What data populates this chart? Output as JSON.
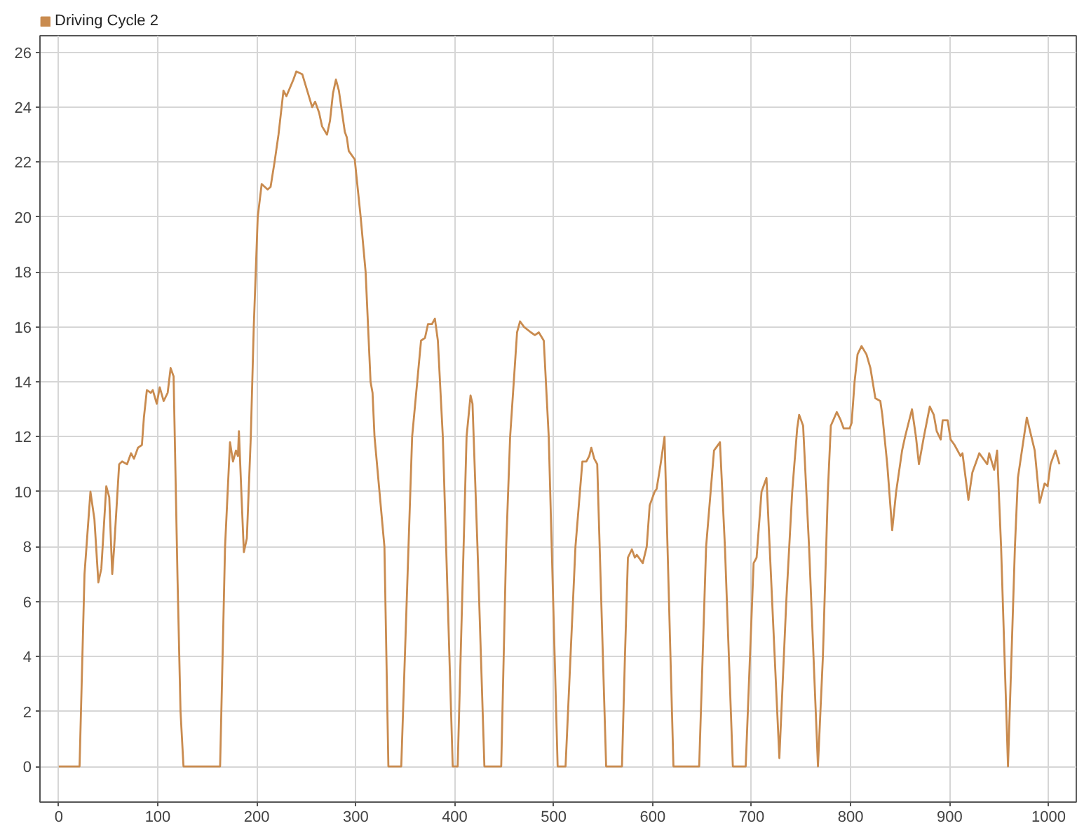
{
  "chart_data": {
    "type": "line",
    "series": [
      {
        "name": "Driving Cycle 2",
        "color": "#c98b4f",
        "x": [
          0,
          21,
          26,
          32,
          36,
          40,
          43,
          48,
          51,
          54,
          56,
          61,
          64,
          69,
          73,
          76,
          80,
          84,
          86,
          89,
          93,
          95,
          99,
          102,
          106,
          110,
          113,
          116,
          120,
          123,
          126,
          163,
          168,
          173,
          176,
          179,
          181,
          182,
          185,
          187,
          190,
          194,
          197,
          201,
          205,
          211,
          214,
          218,
          222,
          227,
          230,
          237,
          240,
          246,
          251,
          256,
          259,
          263,
          266,
          271,
          274,
          277,
          280,
          283,
          289,
          291,
          293,
          299,
          305,
          310,
          315,
          317,
          319,
          329,
          333,
          346,
          357,
          366,
          370,
          373,
          377,
          380,
          383,
          388,
          398,
          403,
          409,
          412,
          416,
          418,
          423,
          430,
          447,
          452,
          456,
          463,
          466,
          470,
          477,
          481,
          485,
          490,
          495,
          504,
          512,
          517,
          522,
          529,
          533,
          536,
          538,
          541,
          544,
          553,
          569,
          572,
          575,
          579,
          582,
          584,
          590,
          594,
          597,
          602,
          604,
          608,
          612,
          615,
          621,
          647,
          654,
          662,
          668,
          673,
          681,
          694,
          702,
          705,
          710,
          715,
          728,
          735,
          741,
          746,
          748,
          752,
          758,
          767,
          772,
          777,
          780,
          786,
          790,
          793,
          799,
          801,
          804,
          807,
          811,
          816,
          820,
          825,
          830,
          832,
          837,
          842,
          846,
          852,
          855,
          862,
          866,
          869,
          874,
          880,
          884,
          887,
          891,
          893,
          898,
          901,
          905,
          911,
          913,
          919,
          923,
          930,
          938,
          940,
          945,
          948,
          952,
          959,
          966,
          969,
          978,
          986,
          991,
          996,
          999,
          1002,
          1007,
          1011
        ],
        "values": [
          0,
          0,
          7.0,
          10.0,
          9.0,
          6.7,
          7.2,
          10.2,
          9.8,
          7.0,
          8.0,
          11.0,
          11.1,
          11.0,
          11.4,
          11.2,
          11.6,
          11.7,
          12.7,
          13.7,
          13.6,
          13.7,
          13.2,
          13.8,
          13.3,
          13.6,
          14.5,
          14.2,
          6.8,
          2.0,
          0,
          0,
          8.0,
          11.8,
          11.1,
          11.5,
          11.3,
          12.2,
          9.5,
          7.8,
          8.3,
          12.0,
          16.0,
          20.0,
          21.2,
          21.0,
          21.1,
          22.0,
          23.0,
          24.6,
          24.4,
          25.0,
          25.3,
          25.2,
          24.6,
          24.0,
          24.2,
          23.8,
          23.3,
          23.0,
          23.5,
          24.5,
          25.0,
          24.6,
          23.1,
          22.9,
          22.4,
          22.1,
          20.0,
          18.0,
          14.0,
          13.6,
          12.0,
          8.0,
          0,
          0,
          12.0,
          15.5,
          15.6,
          16.1,
          16.1,
          16.3,
          15.5,
          12.0,
          0,
          0,
          8.0,
          12.0,
          13.5,
          13.2,
          8.0,
          0,
          0,
          8.0,
          12.0,
          15.8,
          16.2,
          16.0,
          15.8,
          15.7,
          15.8,
          15.5,
          12.0,
          0,
          0,
          4.0,
          8.0,
          11.1,
          11.1,
          11.3,
          11.6,
          11.2,
          11.0,
          0,
          0,
          4.0,
          7.6,
          7.9,
          7.6,
          7.7,
          7.4,
          8.0,
          9.5,
          10.0,
          10.1,
          11.0,
          12.0,
          8.0,
          0,
          0,
          8.0,
          11.5,
          11.8,
          8.0,
          0,
          0,
          7.4,
          7.6,
          10.0,
          10.5,
          0.3,
          6.0,
          10.0,
          12.3,
          12.8,
          12.4,
          8.0,
          0,
          4.0,
          10.0,
          12.4,
          12.9,
          12.6,
          12.3,
          12.3,
          12.5,
          14.0,
          15.0,
          15.3,
          15.0,
          14.5,
          13.4,
          13.3,
          12.8,
          11.0,
          8.6,
          10.0,
          11.5,
          12.0,
          13.0,
          12.0,
          11.0,
          12.0,
          13.1,
          12.8,
          12.2,
          11.9,
          12.6,
          12.6,
          11.9,
          11.7,
          11.3,
          11.4,
          9.7,
          10.7,
          11.4,
          11.0,
          11.4,
          10.8,
          11.5,
          8.0,
          0,
          8.0,
          10.5,
          12.7,
          11.5,
          9.6,
          10.3,
          10.2,
          11.0,
          11.5,
          11.0
        ]
      }
    ],
    "xlim": [
      -19,
      1028
    ],
    "xticks": [
      0,
      100,
      200,
      300,
      400,
      500,
      600,
      700,
      800,
      900,
      1000
    ],
    "ylim": [
      -1.3,
      26.6
    ],
    "yticks": [
      0,
      2,
      4,
      6,
      8,
      10,
      12,
      14,
      16,
      18,
      20,
      22,
      24,
      26
    ],
    "grid": true,
    "legend": "top left",
    "line_style": "solid"
  }
}
